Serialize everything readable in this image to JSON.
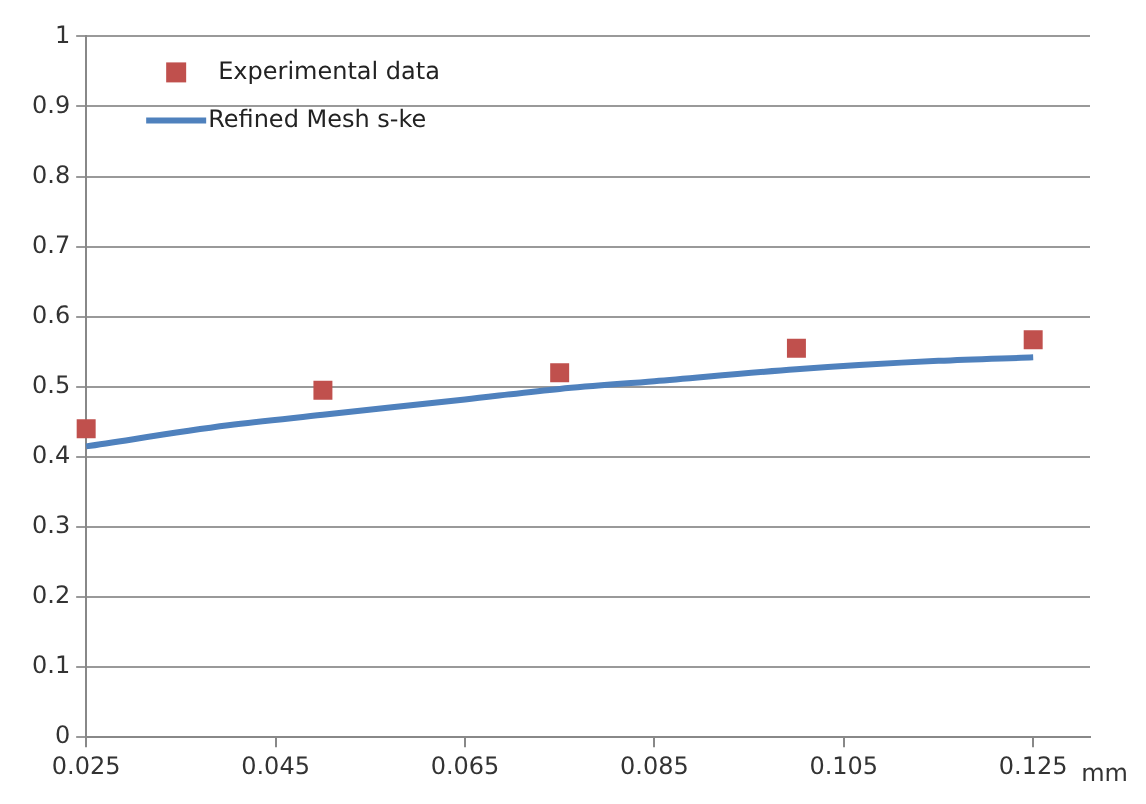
{
  "chart_data": {
    "type": "scatter",
    "xlabel": "mm",
    "xlim": [
      0.025,
      0.131
    ],
    "xticks": [
      0.025,
      0.045,
      0.065,
      0.085,
      0.105,
      0.125
    ],
    "ylim": [
      0,
      1
    ],
    "yticks": [
      0,
      0.1,
      0.2,
      0.3,
      0.4,
      0.5,
      0.6,
      0.7,
      0.8,
      0.9,
      1
    ],
    "grid": "y",
    "legend": "top left",
    "series": [
      {
        "name": "Experimental data",
        "type": "scatter",
        "marker": "square",
        "color": "#c0504d",
        "x": [
          0.025,
          0.05,
          0.075,
          0.1,
          0.125
        ],
        "values": [
          0.44,
          0.495,
          0.52,
          0.555,
          0.567
        ]
      },
      {
        "name": "Refined Mesh s-ke",
        "type": "line",
        "marker": "none",
        "color": "#4f81bd",
        "x": [
          0.025,
          0.04,
          0.05,
          0.065,
          0.075,
          0.085,
          0.1,
          0.115,
          0.125
        ],
        "values": [
          0.415,
          0.445,
          0.46,
          0.482,
          0.497,
          0.508,
          0.525,
          0.537,
          0.542
        ]
      }
    ]
  }
}
